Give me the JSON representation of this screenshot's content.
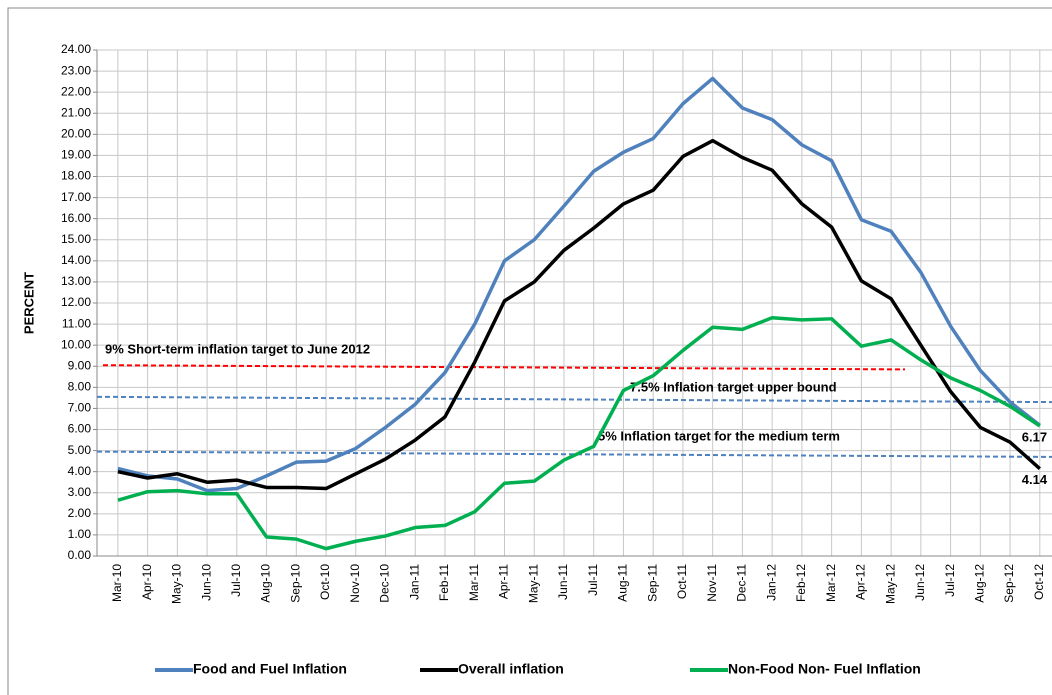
{
  "chart_data": {
    "type": "line",
    "y_label": "PERCENT",
    "categories": [
      "Mar-10",
      "Apr-10",
      "May-10",
      "Jun-10",
      "Jul-10",
      "Aug-10",
      "Sep-10",
      "Oct-10",
      "Nov-10",
      "Dec-10",
      "Jan-11",
      "Feb-11",
      "Mar-11",
      "Apr-11",
      "May-11",
      "Jun-11",
      "Jul-11",
      "Aug-11",
      "Sep-11",
      "Oct-11",
      "Nov-11",
      "Dec-11",
      "Jan-12",
      "Feb-12",
      "Mar-12",
      "Apr-12",
      "May-12",
      "Jun-12",
      "Jul-12",
      "Aug-12",
      "Sep-12",
      "Oct-12"
    ],
    "series": [
      {
        "name": "Food and Fuel Inflation",
        "color": "#4f81bd",
        "values": [
          4.15,
          3.8,
          3.65,
          3.1,
          3.2,
          3.8,
          4.45,
          4.5,
          5.1,
          6.1,
          7.2,
          8.7,
          11.0,
          14.0,
          15.0,
          16.6,
          18.25,
          19.15,
          19.8,
          21.45,
          22.65,
          21.25,
          20.7,
          19.5,
          18.75,
          15.95,
          15.4,
          13.45,
          10.9,
          8.8,
          7.3,
          6.2
        ]
      },
      {
        "name": "Overall inflation",
        "color": "#000000",
        "values": [
          4.0,
          3.7,
          3.9,
          3.5,
          3.6,
          3.25,
          3.25,
          3.2,
          3.9,
          4.6,
          5.5,
          6.6,
          9.2,
          12.1,
          13.0,
          14.5,
          15.55,
          16.7,
          17.35,
          18.95,
          19.7,
          18.9,
          18.3,
          16.7,
          15.6,
          13.05,
          12.2,
          10.0,
          7.8,
          6.1,
          5.4,
          4.14
        ],
        "end_label": true
      },
      {
        "name": "Non-Food Non- Fuel Inflation",
        "color": "#00b050",
        "values": [
          2.65,
          3.05,
          3.1,
          2.95,
          2.95,
          0.9,
          0.8,
          0.35,
          0.7,
          0.95,
          1.35,
          1.45,
          2.1,
          3.45,
          3.55,
          4.55,
          5.2,
          7.85,
          8.55,
          9.75,
          10.85,
          10.75,
          11.3,
          11.2,
          11.25,
          9.95,
          10.25,
          9.3,
          8.45,
          7.85,
          7.1,
          6.17
        ],
        "end_label": true
      }
    ],
    "reference_lines": [
      {
        "label": "9%  Short-term inflation target  to June 2012",
        "color": "#ff0000",
        "start": 9.05,
        "end": 8.85
      },
      {
        "label": "7.5% Inflation target upper bound",
        "color": "#4f81bd",
        "start": 7.55,
        "end": 7.3
      },
      {
        "label": "5% Inflation target for the medium term",
        "color": "#4f81bd",
        "start": 4.95,
        "end": 4.7
      }
    ],
    "ylim": [
      0,
      24
    ],
    "yticks": [
      {
        "value": 0,
        "label": "0.00"
      },
      {
        "value": 1,
        "label": "1.00"
      },
      {
        "value": 2,
        "label": "2.00"
      },
      {
        "value": 3,
        "label": "3.00"
      },
      {
        "value": 4,
        "label": "4.00"
      },
      {
        "value": 5,
        "label": "5.00"
      },
      {
        "value": 6,
        "label": "6.00"
      },
      {
        "value": 7,
        "label": "7.00"
      },
      {
        "value": 8,
        "label": "8.00"
      },
      {
        "value": 9,
        "label": "9.00"
      },
      {
        "value": 10,
        "label": "10.00"
      },
      {
        "value": 11,
        "label": "11.00"
      },
      {
        "value": 12,
        "label": "12.00"
      },
      {
        "value": 13,
        "label": "13.00"
      },
      {
        "value": 14,
        "label": "14.00"
      },
      {
        "value": 15,
        "label": "15.00"
      },
      {
        "value": 16,
        "label": "16.00"
      },
      {
        "value": 17,
        "label": "17.00"
      },
      {
        "value": 18,
        "label": "18.00"
      },
      {
        "value": 19,
        "label": "19.00"
      },
      {
        "value": 20,
        "label": "20.00"
      },
      {
        "value": 21,
        "label": "21.00"
      },
      {
        "value": 22,
        "label": "22.00"
      },
      {
        "value": 23,
        "label": "23.00"
      },
      {
        "value": 24,
        "label": "24.00"
      }
    ],
    "grid": true,
    "legend": "bottom"
  }
}
